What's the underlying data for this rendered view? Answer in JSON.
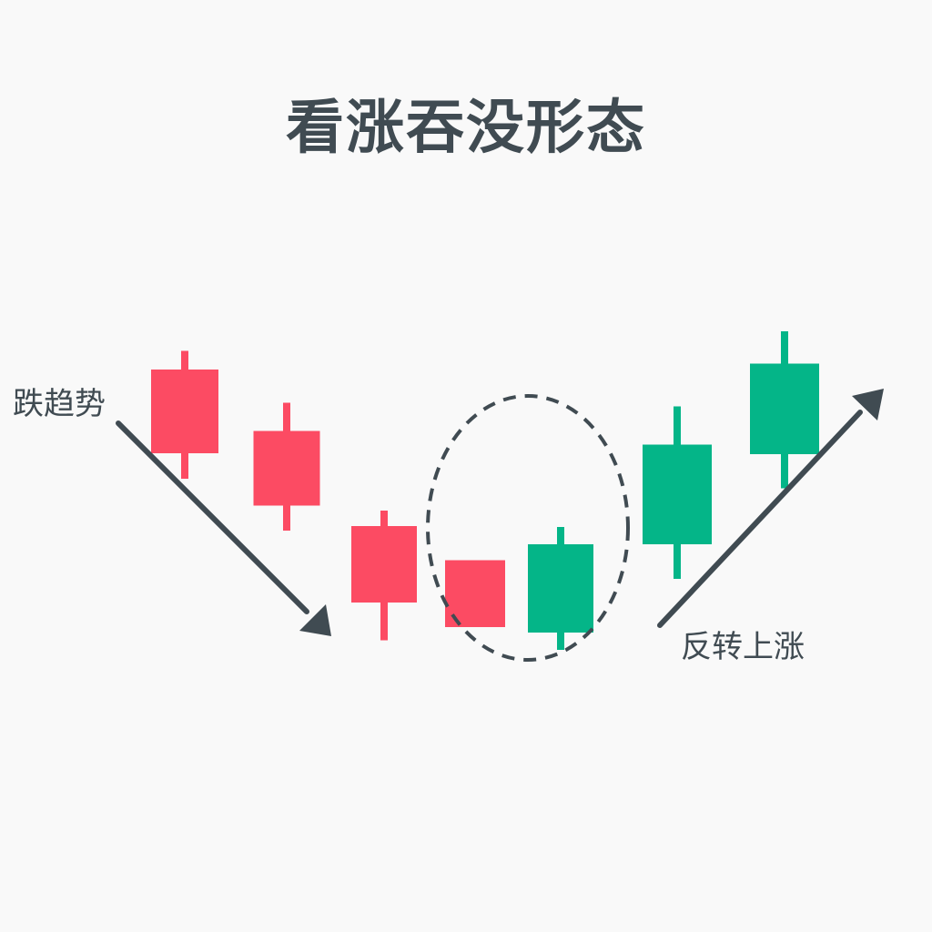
{
  "title": "看涨吞没形态",
  "labels": {
    "downtrend": "跌趋势",
    "reversal": "反转上涨"
  },
  "colors": {
    "background": "#f9f9f9",
    "bearish": "#fc4b63",
    "bullish": "#04b588",
    "text": "#404b52",
    "arrow": "#404b52",
    "highlight": "#404b52"
  },
  "icons": {
    "down_arrow": "arrow-down-right-icon",
    "up_arrow": "arrow-up-right-icon"
  },
  "candles": [
    {
      "type": "bearish",
      "open": 3.88,
      "close": 2.04,
      "high": 4.29,
      "low": 1.48
    },
    {
      "type": "bearish",
      "open": 2.53,
      "close": 0.89,
      "high": 3.15,
      "low": 0.34
    },
    {
      "type": "bearish",
      "open": 0.44,
      "close": -1.24,
      "high": 0.78,
      "low": -2.07
    },
    {
      "type": "bearish",
      "open": -0.31,
      "close": -1.78,
      "high": null,
      "low": null
    },
    {
      "type": "bullish",
      "open": -1.9,
      "close": 0.04,
      "high": 0.42,
      "low": -2.28
    },
    {
      "type": "bullish",
      "open": 0.04,
      "close": 2.23,
      "high": 3.07,
      "low": -0.72
    },
    {
      "type": "bullish",
      "open": 2.02,
      "close": 4.01,
      "high": 4.72,
      "low": 1.27
    }
  ]
}
